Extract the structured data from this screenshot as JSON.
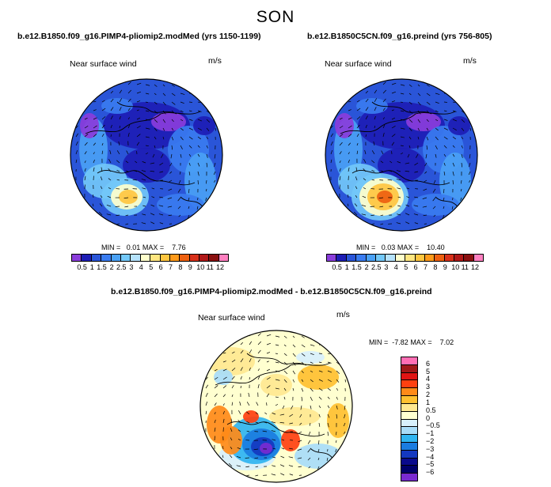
{
  "season": "SON",
  "panel_left": {
    "title": "b.e12.B1850.f09_g16.PIMP4-pliomip2.modMed (yrs 1150-1199)",
    "variable": "Near surface wind",
    "units": "m/s",
    "min_label": "MIN =",
    "min_value": "0.01",
    "max_label": "MAX =",
    "max_value": "7.76"
  },
  "panel_right": {
    "title": "b.e12.B1850C5CN.f09_g16.preind (yrs 756-805)",
    "variable": "Near surface wind",
    "units": "m/s",
    "min_label": "MIN =",
    "min_value": "0.03",
    "max_label": "MAX =",
    "max_value": "10.40"
  },
  "panel_diff": {
    "title": "b.e12.B1850.f09_g16.PIMP4-pliomip2.modMed - b.e12.B1850C5CN.f09_g16.preind",
    "variable": "Near surface wind",
    "units": "m/s",
    "min_label": "MIN =",
    "min_value": "-7.82",
    "max_label": "MAX =",
    "max_value": "7.02"
  },
  "chart_data": [
    {
      "type": "heatmap",
      "title": "b.e12.B1850.f09_g16.PIMP4-pliomip2.modMed (yrs 1150-1199)",
      "variable": "Near surface wind",
      "units": "m/s",
      "min": 0.01,
      "max": 7.76,
      "colorbar": {
        "levels": [
          "0.5",
          "1",
          "1.5",
          "2",
          "2.5",
          "3",
          "4",
          "5",
          "6",
          "7",
          "8",
          "9",
          "10",
          "11",
          "12"
        ],
        "colors": [
          "#8a3ddb",
          "#1d1db5",
          "#2a55d8",
          "#3a7cf0",
          "#4aa1f5",
          "#73c8f8",
          "#b5e2fb",
          "#ffffcc",
          "#ffe680",
          "#ffc640",
          "#ff9a1a",
          "#ee6010",
          "#d8301a",
          "#b01818",
          "#8a1010",
          "#ff80c0"
        ]
      }
    },
    {
      "type": "heatmap",
      "title": "b.e12.B1850C5CN.f09_g16.preind (yrs 756-805)",
      "variable": "Near surface wind",
      "units": "m/s",
      "min": 0.03,
      "max": 10.4,
      "colorbar": {
        "levels": [
          "0.5",
          "1",
          "1.5",
          "2",
          "2.5",
          "3",
          "4",
          "5",
          "6",
          "7",
          "8",
          "9",
          "10",
          "11",
          "12"
        ],
        "colors": [
          "#8a3ddb",
          "#1d1db5",
          "#2a55d8",
          "#3a7cf0",
          "#4aa1f5",
          "#73c8f8",
          "#b5e2fb",
          "#ffffcc",
          "#ffe680",
          "#ffc640",
          "#ff9a1a",
          "#ee6010",
          "#d8301a",
          "#b01818",
          "#8a1010",
          "#ff80c0"
        ]
      }
    },
    {
      "type": "heatmap",
      "title": "b.e12.B1850.f09_g16.PIMP4-pliomip2.modMed - b.e12.B1850C5CN.f09_g16.preind",
      "variable": "Near surface wind",
      "units": "m/s",
      "min": -7.82,
      "max": 7.02,
      "colorbar": {
        "levels": [
          "6",
          "5",
          "4",
          "3",
          "2",
          "1",
          "0.5",
          "0",
          "−0.5",
          "−1",
          "−2",
          "−3",
          "−4",
          "−5",
          "−6"
        ],
        "colors": [
          "#ff6eb4",
          "#a01818",
          "#e01414",
          "#ff4010",
          "#ff8a18",
          "#ffc030",
          "#ffe890",
          "#ffffd0",
          "#d8f0fc",
          "#a8dcf8",
          "#30b4f0",
          "#1a7ce0",
          "#1438c0",
          "#0a0a8c",
          "#00006a",
          "#7a2ad0"
        ]
      }
    }
  ]
}
